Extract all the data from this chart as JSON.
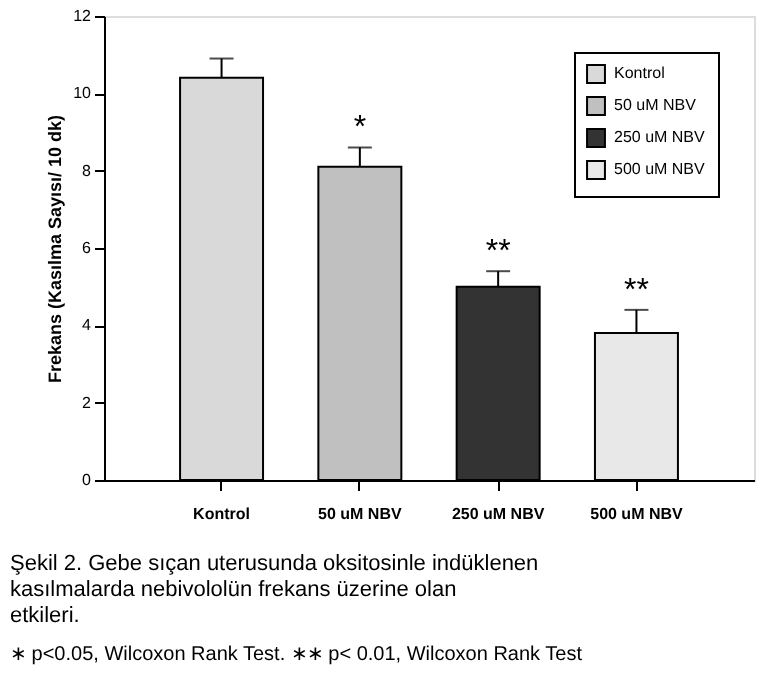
{
  "chart_data": {
    "type": "bar",
    "ylabel": "Frekans (Kasılma Sayısı/ 10 dk)",
    "categories": [
      "Kontrol",
      "50 uM NBV",
      "250 uM NBV",
      "500 uM NBV"
    ],
    "series": [
      {
        "name": "Kontrol",
        "color": "#d9d9d9",
        "values": [
          10.4,
          null,
          null,
          null
        ],
        "errors": [
          0.5,
          null,
          null,
          null
        ]
      },
      {
        "name": "50 uM NBV",
        "color": "#c0c0c0",
        "values": [
          null,
          8.1,
          null,
          null
        ],
        "errors": [
          null,
          0.5,
          null,
          null
        ]
      },
      {
        "name": "250 uM NBV",
        "color": "#333333",
        "values": [
          null,
          null,
          5.0,
          null
        ],
        "errors": [
          null,
          null,
          0.4,
          null
        ]
      },
      {
        "name": "500 uM NBV",
        "color": "#e8e8e8",
        "values": [
          null,
          null,
          null,
          3.8
        ],
        "errors": [
          null,
          null,
          null,
          0.6
        ]
      }
    ],
    "ylim": [
      0,
      12
    ],
    "yticks": [
      0,
      2,
      4,
      6,
      8,
      10,
      12
    ],
    "grid": false,
    "legend": "top right",
    "annotations": [
      {
        "text": "*",
        "x": "50 uM NBV",
        "y": 8.6
      },
      {
        "text": "**",
        "x": "250 uM NBV",
        "y": 5.4
      },
      {
        "text": "**",
        "x": "500 uM NBV",
        "y": 4.4
      },
      "Şekil 2. Gebe sıçan uterusunda oksitosinle indüklenen kasılmalarda nebivololün  frekans üzerine olan etkileri.",
      "∗ p<0.05, Wilcoxon Rank Test.   ∗∗ p< 0.01, Wilcoxon Rank Test"
    ]
  }
}
